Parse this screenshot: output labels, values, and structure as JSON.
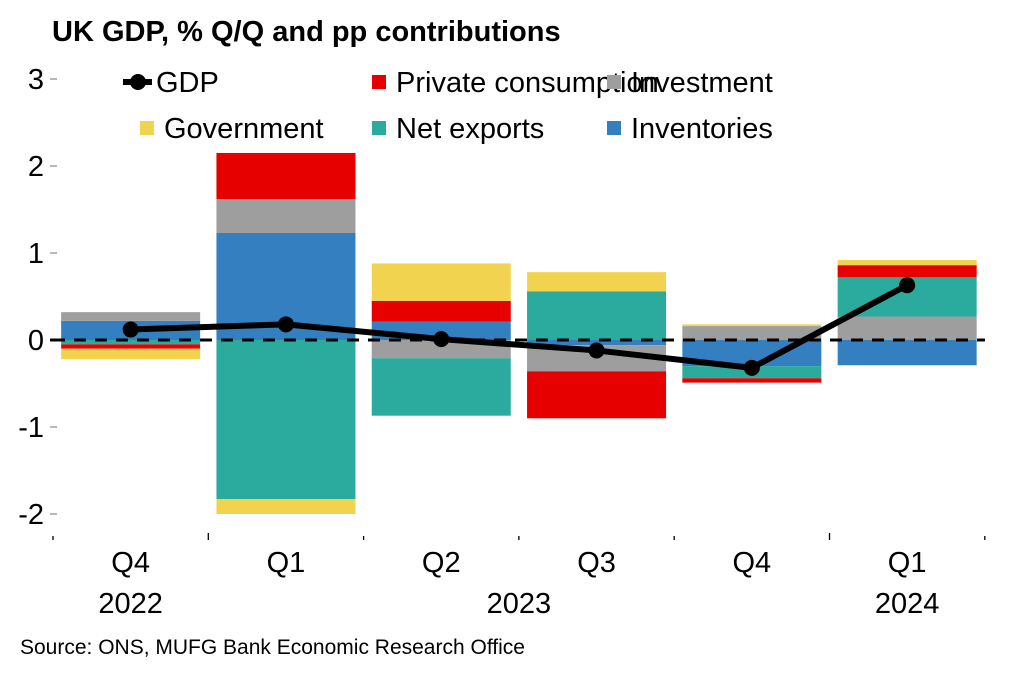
{
  "chart_data": {
    "type": "bar",
    "stacked": true,
    "title": "UK GDP, % Q/Q and pp contributions",
    "source": "Source: ONS, MUFG Bank Economic Research Office",
    "xlabel": "",
    "ylabel": "",
    "ylim": [
      -2,
      3
    ],
    "yticks": [
      "3",
      "2",
      "1",
      "0",
      "-1",
      "-2"
    ],
    "ytick_values": [
      3,
      2,
      1,
      0,
      -1,
      -2
    ],
    "categories": [
      "Q4 2022",
      "Q1 2023",
      "Q2 2023",
      "Q3 2023",
      "Q4 2023",
      "Q1 2024"
    ],
    "x_quarter_labels": [
      "Q4",
      "Q1",
      "Q2",
      "Q3",
      "Q4",
      "Q1"
    ],
    "x_year_labels": [
      {
        "label": "2022",
        "category_index": 0
      },
      {
        "label": "2023",
        "category_index": 2.5
      },
      {
        "label": "2024",
        "category_index": 5
      }
    ],
    "legend": {
      "placement": "top",
      "entries": [
        {
          "name": "GDP",
          "kind": "line-marker",
          "color": "#000000"
        },
        {
          "name": "Private consumption",
          "kind": "square",
          "color": "#e60000"
        },
        {
          "name": "Investment",
          "kind": "square",
          "color": "#9e9e9e"
        },
        {
          "name": "Government",
          "kind": "square",
          "color": "#f2d34f"
        },
        {
          "name": "Net exports",
          "kind": "square",
          "color": "#2aab9d"
        },
        {
          "name": "Inventories",
          "kind": "square",
          "color": "#337fc0"
        }
      ]
    },
    "series": [
      {
        "name": "Inventories",
        "color": "#337fc0",
        "values": [
          0.22,
          1.23,
          0.21,
          -0.06,
          -0.3,
          -0.29
        ]
      },
      {
        "name": "Investment",
        "color": "#9e9e9e",
        "values": [
          0.1,
          0.39,
          -0.21,
          -0.3,
          0.16,
          0.27
        ]
      },
      {
        "name": "Net exports",
        "color": "#2aab9d",
        "values": [
          -0.05,
          -1.83,
          -0.66,
          0.56,
          -0.14,
          0.45
        ]
      },
      {
        "name": "Private consumption",
        "color": "#e60000",
        "values": [
          -0.05,
          0.53,
          0.24,
          -0.54,
          -0.05,
          0.14
        ]
      },
      {
        "name": "Government",
        "color": "#f2d34f",
        "values": [
          -0.12,
          -0.17,
          0.43,
          0.22,
          0.02,
          0.06
        ]
      }
    ],
    "line_series": {
      "name": "GDP",
      "color": "#000000",
      "values": [
        0.12,
        0.18,
        0.01,
        -0.12,
        -0.32,
        0.63
      ]
    },
    "zero_line": "dashed",
    "grid": false
  }
}
